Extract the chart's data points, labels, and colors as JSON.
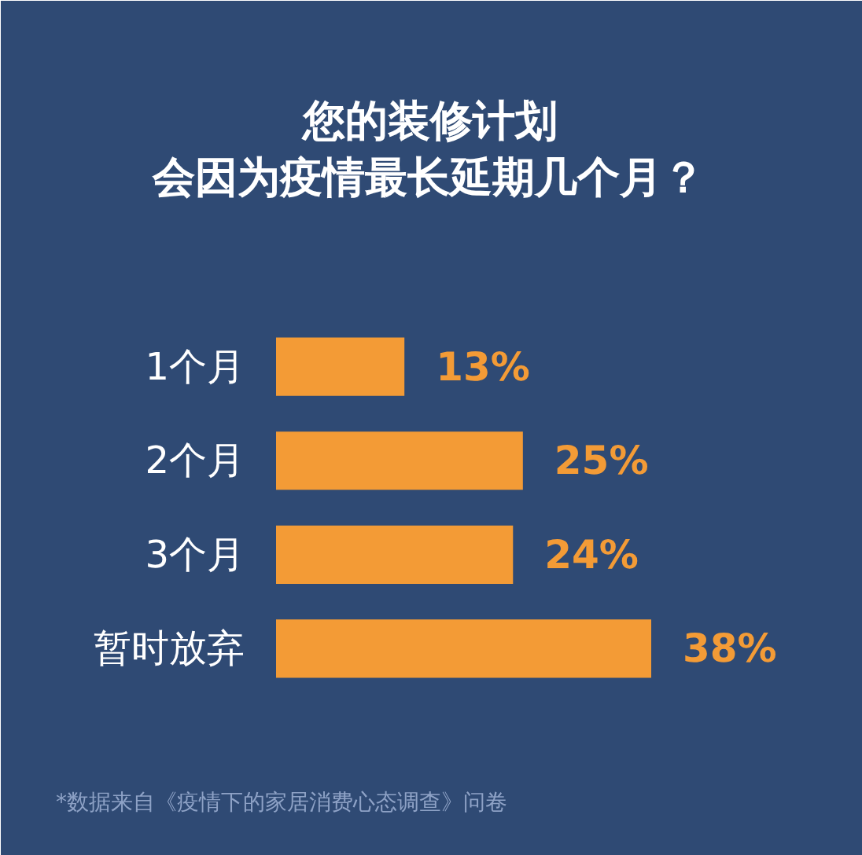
{
  "chart_data": {
    "type": "bar",
    "orientation": "horizontal",
    "title": "您的装修计划",
    "subtitle": "会因为疫情最长延期几个月？",
    "categories": [
      "1个月",
      "2个月",
      "3个月",
      "暂时放弃"
    ],
    "values": [
      13,
      25,
      24,
      38
    ],
    "color": "#f39b36",
    "value_labels": [
      "13%",
      "25%",
      "24%",
      "38%"
    ],
    "grid": false,
    "annotations": [
      "*数据来自《疫情下的家居消费心态调查》问卷"
    ]
  }
}
